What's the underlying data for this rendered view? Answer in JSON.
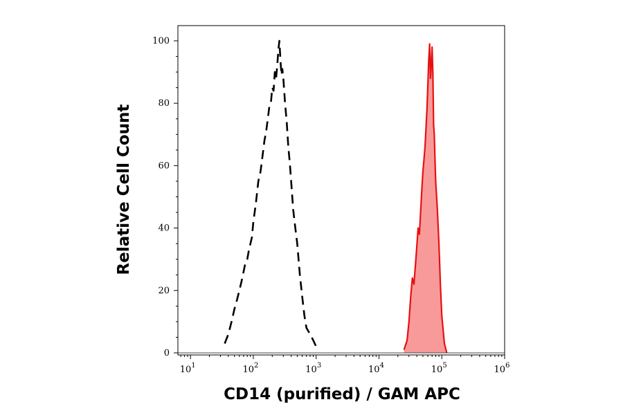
{
  "chart_data": {
    "type": "area",
    "title": "",
    "xlabel": "CD14 (purified) / GAM APC",
    "ylabel": "Relative Cell Count",
    "x_scale": "log",
    "xlim": [
      6.3,
      1000000
    ],
    "ylim": [
      0,
      100
    ],
    "x_ticks": [
      {
        "base": "10",
        "exp": "1"
      },
      {
        "base": "10",
        "exp": "2"
      },
      {
        "base": "10",
        "exp": "3"
      },
      {
        "base": "10",
        "exp": "4"
      },
      {
        "base": "10",
        "exp": "5"
      },
      {
        "base": "10",
        "exp": "6"
      }
    ],
    "y_ticks": [
      "0",
      "20",
      "40",
      "60",
      "80",
      "100"
    ],
    "grid": false,
    "legend": "none",
    "colors": {
      "control": "#000000",
      "stained_fill": "#f99a9a",
      "stained_line": "#e81010"
    },
    "series": [
      {
        "style": "dashed-black-outline",
        "x": [
          35,
          40,
          45,
          50,
          55,
          60,
          65,
          70,
          75,
          80,
          85,
          90,
          95,
          100,
          110,
          120,
          130,
          140,
          150,
          160,
          170,
          180,
          190,
          200,
          210,
          220,
          230,
          240,
          250,
          260,
          270,
          280,
          290,
          300,
          320,
          340,
          360,
          380,
          400,
          430,
          460,
          500,
          550,
          600,
          650,
          700,
          800,
          900,
          1000,
          1100
        ],
        "y": [
          3,
          6,
          10,
          14,
          17,
          20,
          23,
          26,
          29,
          30,
          33,
          35,
          37,
          42,
          48,
          55,
          58,
          63,
          68,
          71,
          75,
          79,
          80,
          85,
          84,
          90,
          88,
          92,
          97,
          100,
          94,
          89,
          91,
          88,
          80,
          74,
          66,
          61,
          55,
          46,
          41,
          35,
          25,
          18,
          12,
          8,
          6,
          4,
          2,
          1
        ]
      },
      {
        "style": "red-filled",
        "x": [
          25000,
          28000,
          30000,
          32000,
          34000,
          36000,
          38000,
          40000,
          42000,
          44000,
          46000,
          48000,
          50000,
          52000,
          54000,
          56000,
          58000,
          60000,
          62000,
          64000,
          66000,
          68000,
          70000,
          72000,
          74000,
          76000,
          78000,
          80000,
          85000,
          90000,
          95000,
          100000,
          110000,
          120000
        ],
        "y": [
          1,
          4,
          10,
          18,
          24,
          22,
          28,
          34,
          40,
          38,
          45,
          52,
          58,
          62,
          66,
          72,
          78,
          86,
          94,
          99,
          88,
          92,
          98,
          90,
          73,
          70,
          62,
          55,
          46,
          35,
          22,
          12,
          3,
          0
        ]
      }
    ]
  }
}
